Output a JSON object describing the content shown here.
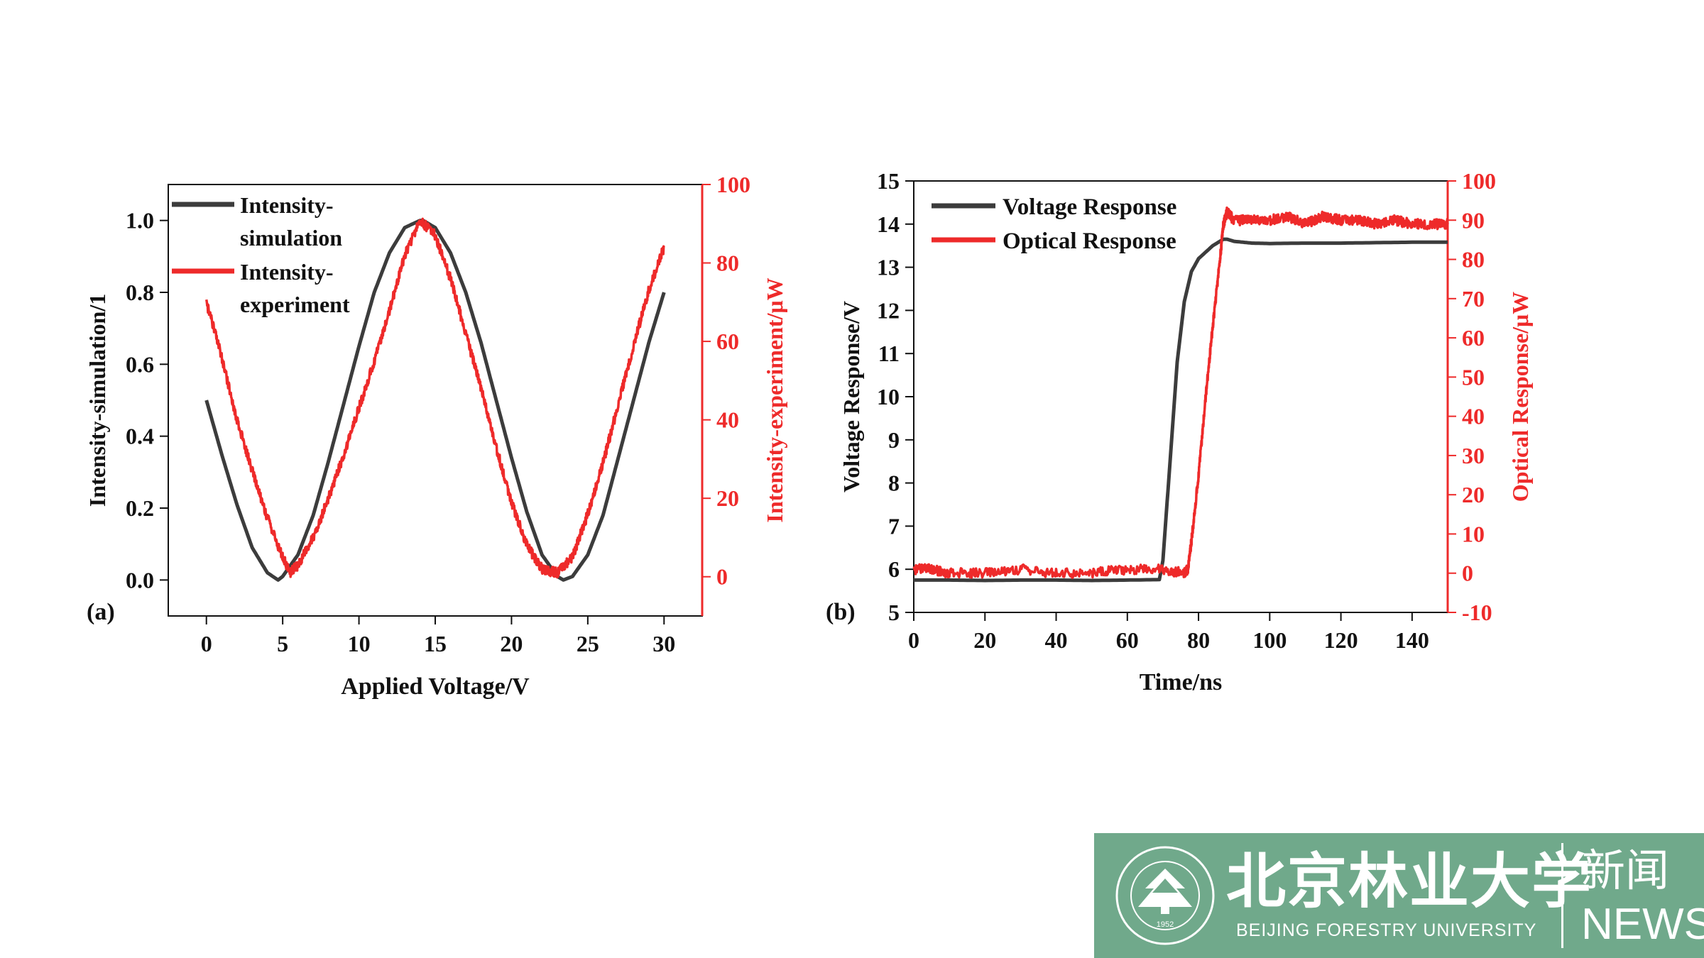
{
  "colors": {
    "black_series": "#3c3c3c",
    "red_series": "#ee2a2a",
    "axis": "#111111",
    "banner": "#70a98b"
  },
  "chart_data": [
    {
      "id": "a",
      "type": "line",
      "panel_label": "(a)",
      "xlabel": "Applied Voltage/V",
      "ylabel_left": "Intensity-simulation/1",
      "ylabel_right": "Intensity-experiment/μW",
      "xlim": [
        -2.5,
        32.5
      ],
      "ylim_left": [
        -0.1,
        1.1
      ],
      "ylim_right": [
        -10,
        100
      ],
      "xticks": [
        0,
        5,
        10,
        15,
        20,
        25,
        30
      ],
      "xtick_labels": [
        "0",
        "5",
        "10",
        "15",
        "20",
        "25",
        "30"
      ],
      "yticks_left": [
        0.0,
        0.2,
        0.4,
        0.6,
        0.8,
        1.0
      ],
      "ytick_labels_left": [
        "0.0",
        "0.2",
        "0.4",
        "0.6",
        "0.8",
        "1.0"
      ],
      "yticks_right": [
        0,
        20,
        40,
        60,
        80,
        100
      ],
      "ytick_labels_right": [
        "0",
        "20",
        "40",
        "60",
        "80",
        "100"
      ],
      "legend": [
        "Intensity-\nsimulation",
        "Intensity-\nexperiment"
      ],
      "legend_position": "top-left",
      "series": [
        {
          "name": "Intensity-simulation",
          "axis": "left",
          "color": "#3c3c3c",
          "x": [
            0,
            1,
            2,
            3,
            4,
            4.7,
            5,
            6,
            7,
            8,
            9,
            10,
            11,
            12,
            13,
            14,
            14.2,
            15,
            16,
            17,
            18,
            19,
            20,
            21,
            22,
            23,
            23.4,
            24,
            25,
            26,
            27,
            28,
            29,
            30
          ],
          "values": [
            0.5,
            0.35,
            0.21,
            0.09,
            0.02,
            0.0,
            0.01,
            0.07,
            0.18,
            0.33,
            0.49,
            0.65,
            0.8,
            0.91,
            0.98,
            1.0,
            1.0,
            0.98,
            0.91,
            0.8,
            0.66,
            0.5,
            0.34,
            0.19,
            0.07,
            0.01,
            0.0,
            0.01,
            0.07,
            0.18,
            0.34,
            0.5,
            0.66,
            0.8
          ]
        },
        {
          "name": "Intensity-experiment",
          "axis": "right",
          "color": "#ee2a2a",
          "x": [
            0,
            1,
            2,
            3,
            4,
            5,
            5.5,
            6,
            7,
            8,
            9,
            10,
            11,
            12,
            13,
            14,
            15,
            16,
            17,
            18,
            19,
            20,
            21,
            22,
            23,
            24,
            25,
            26,
            27,
            28,
            29,
            30
          ],
          "values": [
            70,
            56,
            40,
            27,
            15,
            5,
            1,
            3,
            10,
            20,
            31,
            43,
            55,
            68,
            82,
            91,
            87,
            76,
            62,
            48,
            33,
            19,
            8,
            2,
            1,
            5,
            16,
            29,
            44,
            59,
            73,
            84
          ]
        }
      ]
    },
    {
      "id": "b",
      "type": "line",
      "panel_label": "(b)",
      "xlabel": "Time/ns",
      "ylabel_left": "Voltage Response/V",
      "ylabel_right": "Optical Response/μW",
      "xlim": [
        0,
        150
      ],
      "ylim_left": [
        5,
        15
      ],
      "ylim_right": [
        -10,
        100
      ],
      "xticks": [
        0,
        20,
        40,
        60,
        80,
        100,
        120,
        140
      ],
      "xtick_labels": [
        "0",
        "20",
        "40",
        "60",
        "80",
        "100",
        "120",
        "140"
      ],
      "yticks_left": [
        5,
        6,
        7,
        8,
        9,
        10,
        11,
        12,
        13,
        14,
        15
      ],
      "ytick_labels_left": [
        "5",
        "6",
        "7",
        "8",
        "9",
        "10",
        "11",
        "12",
        "13",
        "14",
        "15"
      ],
      "yticks_right": [
        -10,
        0,
        10,
        20,
        30,
        40,
        50,
        60,
        70,
        80,
        90,
        100
      ],
      "ytick_labels_right": [
        "-10",
        "0",
        "10",
        "20",
        "30",
        "40",
        "50",
        "60",
        "70",
        "80",
        "90",
        "100"
      ],
      "legend": [
        "Voltage Response",
        "Optical Response"
      ],
      "legend_position": "top-left",
      "series": [
        {
          "name": "Voltage Response",
          "axis": "left",
          "color": "#3c3c3c",
          "x": [
            0,
            10,
            20,
            30,
            40,
            50,
            60,
            69,
            70,
            72,
            74,
            76,
            78,
            80,
            82,
            84,
            86,
            87,
            88,
            90,
            95,
            100,
            110,
            120,
            130,
            140,
            150
          ],
          "values": [
            5.75,
            5.75,
            5.74,
            5.75,
            5.75,
            5.74,
            5.75,
            5.76,
            6.2,
            8.5,
            10.8,
            12.2,
            12.9,
            13.2,
            13.35,
            13.5,
            13.6,
            13.65,
            13.65,
            13.6,
            13.56,
            13.55,
            13.56,
            13.56,
            13.57,
            13.58,
            13.58
          ]
        },
        {
          "name": "Optical Response",
          "axis": "right",
          "color": "#ee2a2a",
          "x": [
            0,
            5,
            10,
            20,
            30,
            40,
            50,
            60,
            70,
            76,
            77,
            78,
            80,
            82,
            84,
            86,
            87,
            88,
            90,
            95,
            100,
            105,
            110,
            115,
            120,
            125,
            130,
            135,
            140,
            145,
            150
          ],
          "values": [
            1,
            1,
            0,
            0,
            1,
            0,
            0,
            1,
            1,
            0,
            1,
            8,
            25,
            45,
            63,
            80,
            89,
            92,
            90,
            90,
            90,
            91,
            89,
            91,
            90,
            90,
            89,
            90,
            89,
            89,
            89
          ]
        }
      ]
    }
  ],
  "logo": {
    "chinese_name": "北京林业大学",
    "english_name": "BEIJING FORESTRY UNIVERSITY",
    "news_chinese": "新闻",
    "news_english": "NEWS",
    "seal_year": "1952"
  }
}
